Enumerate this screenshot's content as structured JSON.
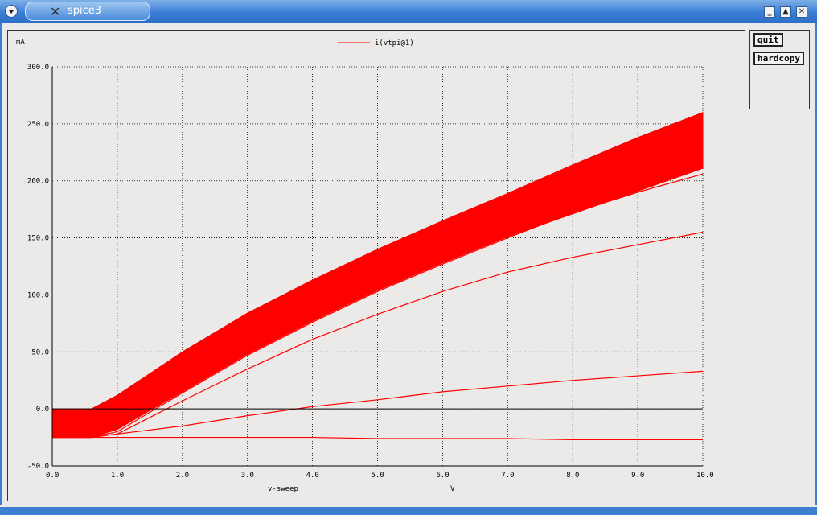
{
  "window": {
    "title": "spice3"
  },
  "buttons": {
    "quit": "quit",
    "hardcopy": "hardcopy"
  },
  "window_controls": {
    "minimize": "minimize-icon",
    "maximize": "maximize-icon",
    "close": "close-icon"
  },
  "chart_data": {
    "type": "line",
    "ylabel": "mA",
    "xlabel": "v-sweep",
    "xunit": "V",
    "legend": "i(vtpi@1)",
    "legend_placement": "top-center",
    "grid": "dotted",
    "xlim": [
      0,
      10
    ],
    "ylim": [
      -50,
      300
    ],
    "x_ticks": [
      "0.0",
      "1.0",
      "2.0",
      "3.0",
      "4.0",
      "5.0",
      "6.0",
      "7.0",
      "8.0",
      "9.0",
      "10.0"
    ],
    "y_ticks": [
      "300.0",
      "250.0",
      "200.0",
      "150.0",
      "100.0",
      "50.0",
      "0.0",
      "-50.0"
    ],
    "colors": {
      "series": "#ff0000",
      "axis": "#000000",
      "background": "#ebeae8"
    },
    "x": [
      0,
      0.6,
      1,
      2,
      3,
      4,
      5,
      6,
      7,
      8,
      9,
      10
    ],
    "band": {
      "name": "i(vtpi@1) family (filled envelope)",
      "upper": [
        0,
        0,
        12,
        50,
        84,
        113,
        140,
        165,
        189,
        214,
        238,
        260
      ],
      "lower": [
        -25,
        -25,
        -18,
        15,
        48,
        77,
        104,
        128,
        151,
        171,
        191,
        211
      ]
    },
    "series": [
      {
        "values": [
          -25,
          -25,
          -20,
          14,
          47,
          76,
          103,
          127,
          150,
          172,
          190,
          206
        ]
      },
      {
        "values": [
          -25,
          -25,
          -22,
          7,
          35,
          61,
          83,
          103,
          120,
          133,
          144,
          155
        ]
      },
      {
        "values": [
          -25,
          -25,
          -22,
          -15,
          -6,
          2,
          8,
          15,
          20,
          25,
          29,
          33
        ]
      },
      {
        "values": [
          -25,
          -25,
          -25,
          -25,
          -25,
          -25,
          -26,
          -26,
          -26,
          -27,
          -27,
          -27
        ]
      }
    ]
  }
}
